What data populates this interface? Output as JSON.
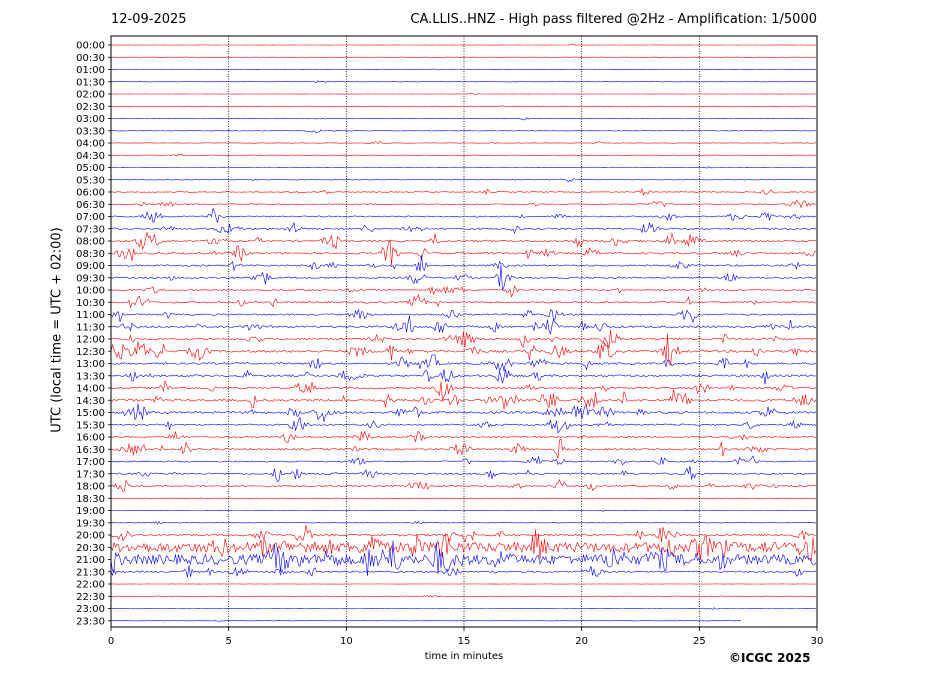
{
  "header": {
    "date": "12-09-2025",
    "title": "CA.LLIS..HNZ - High pass filtered @2Hz - Amplification: 1/5000"
  },
  "footer": {
    "copyright": "©ICGC 2025"
  },
  "chart_data": {
    "type": "line",
    "title": "CA.LLIS..HNZ - High pass filtered @2Hz - Amplification: 1/5000",
    "xlabel": "time in minutes",
    "ylabel": "UTC (local time = UTC + 02:00)",
    "xlim": [
      0,
      30
    ],
    "xticks": [
      0,
      5,
      10,
      15,
      20,
      25,
      30
    ],
    "grid": "vertical dotted lines at 5-minute intervals",
    "series_colors": [
      "#ff0000",
      "#0000ff"
    ],
    "color_pattern": "alternating by hour: even hours red, odd hours blue",
    "rows": [
      "00:00",
      "00:30",
      "01:00",
      "01:30",
      "02:00",
      "02:30",
      "03:00",
      "03:30",
      "04:00",
      "04:30",
      "05:00",
      "05:30",
      "06:00",
      "06:30",
      "07:00",
      "07:30",
      "08:00",
      "08:30",
      "09:00",
      "09:30",
      "10:00",
      "10:30",
      "11:00",
      "11:30",
      "12:00",
      "12:30",
      "13:00",
      "13:30",
      "14:00",
      "14:30",
      "15:00",
      "15:30",
      "16:00",
      "16:30",
      "17:00",
      "17:30",
      "18:00",
      "18:30",
      "19:00",
      "19:30",
      "20:00",
      "20:30",
      "21:00",
      "21:30",
      "22:00",
      "22:30",
      "23:00",
      "23:30"
    ],
    "activity": [
      0.1,
      0.1,
      0.1,
      0.1,
      0.1,
      0.1,
      0.15,
      0.2,
      0.2,
      0.15,
      0.1,
      0.15,
      0.3,
      0.4,
      0.5,
      0.6,
      0.7,
      0.7,
      0.6,
      0.6,
      0.5,
      0.6,
      0.6,
      0.8,
      0.7,
      0.9,
      0.7,
      0.8,
      0.7,
      0.9,
      0.8,
      0.6,
      0.5,
      0.7,
      0.5,
      0.6,
      0.6,
      0.1,
      0.1,
      0.15,
      0.7,
      1.0,
      1.0,
      0.6,
      0.1,
      0.1,
      0.1,
      0.1
    ],
    "last_row_end_minute": 26.8
  }
}
